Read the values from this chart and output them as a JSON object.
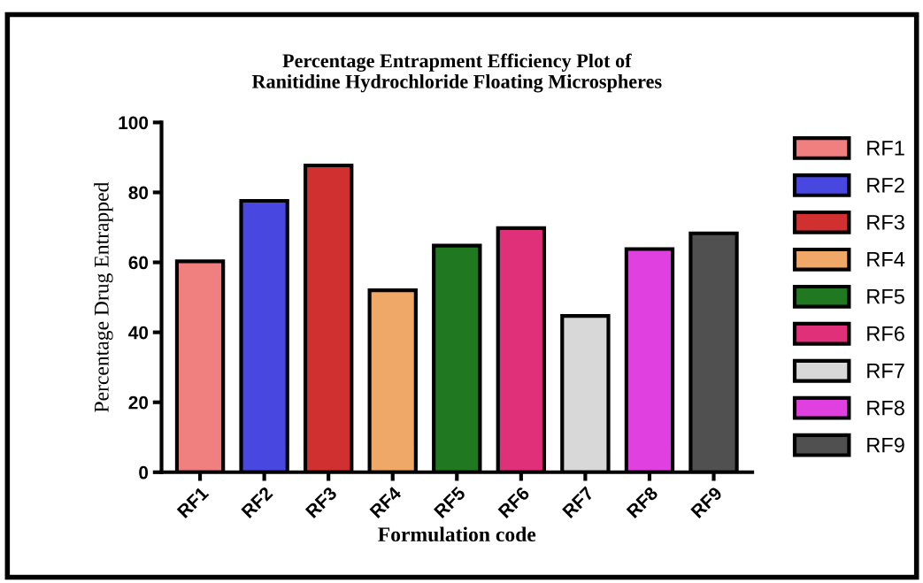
{
  "chart_data": {
    "type": "bar",
    "title": "Percentage Entrapment Efficiency Plot of\nRanitidine Hydrochloride Floating Microspheres",
    "xlabel": "Formulation code",
    "ylabel": "Percentage Drug Entrapped",
    "categories": [
      "RF1",
      "RF2",
      "RF3",
      "RF4",
      "RF5",
      "RF6",
      "RF7",
      "RF8",
      "RF9"
    ],
    "series": [
      {
        "name": "RF1",
        "color": "#f08080",
        "values": [
          60.3,
          null,
          null,
          null,
          null,
          null,
          null,
          null,
          null
        ]
      },
      {
        "name": "RF2",
        "color": "#4848e0",
        "values": [
          null,
          77.6,
          null,
          null,
          null,
          null,
          null,
          null,
          null
        ]
      },
      {
        "name": "RF3",
        "color": "#d03030",
        "values": [
          null,
          null,
          87.7,
          null,
          null,
          null,
          null,
          null,
          null
        ]
      },
      {
        "name": "RF4",
        "color": "#f0a868",
        "values": [
          null,
          null,
          null,
          52,
          null,
          null,
          null,
          null,
          null
        ]
      },
      {
        "name": "RF5",
        "color": "#207820",
        "values": [
          null,
          null,
          null,
          null,
          64.8,
          null,
          null,
          null,
          null
        ]
      },
      {
        "name": "RF6",
        "color": "#e0307a",
        "values": [
          null,
          null,
          null,
          null,
          null,
          69.8,
          null,
          null,
          null
        ]
      },
      {
        "name": "RF7",
        "color": "#d8d8d8",
        "values": [
          null,
          null,
          null,
          null,
          null,
          null,
          44.7,
          null,
          null
        ]
      },
      {
        "name": "RF8",
        "color": "#e040e0",
        "values": [
          null,
          null,
          null,
          null,
          null,
          null,
          null,
          63.8,
          null
        ]
      },
      {
        "name": "RF9",
        "color": "#505050",
        "values": [
          null,
          null,
          null,
          null,
          null,
          null,
          null,
          null,
          68.3
        ]
      }
    ],
    "ylim": [
      0,
      100
    ],
    "yticks": [
      0,
      20,
      40,
      60,
      80,
      100
    ],
    "grid": false,
    "legend": "right"
  }
}
